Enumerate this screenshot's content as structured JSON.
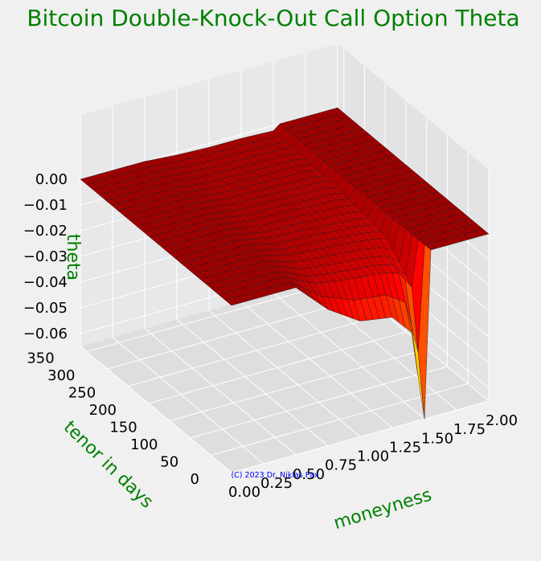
{
  "chart_data": {
    "type": "surface",
    "title": "Bitcoin Double-Knock-Out Call Option Theta",
    "xlabel": "moneyness",
    "ylabel": "tenor in days",
    "zlabel": "theta",
    "x_ticks": [
      "0.00",
      "0.25",
      "0.50",
      "0.75",
      "1.00",
      "1.25",
      "1.50",
      "1.75",
      "2.00"
    ],
    "y_ticks": [
      "0",
      "50",
      "100",
      "150",
      "200",
      "250",
      "300",
      "350"
    ],
    "z_ticks": [
      "0.00",
      "−0.01",
      "−0.02",
      "−0.03",
      "−0.04",
      "−0.05",
      "−0.06"
    ],
    "xlim": [
      0.0,
      2.0
    ],
    "ylim": [
      0,
      365
    ],
    "zlim": [
      -0.065,
      0.005
    ],
    "colormap": "jet",
    "surface_notes": "Theta is 0 outside the knock-out barriers (moneyness ~0.55 and ~1.55); inside, theta is slightly negative, becoming strongly negative near the upper barrier at short tenors (minimum about -0.065).",
    "samples": {
      "moneyness": [
        0.0,
        0.5,
        0.75,
        1.0,
        1.25,
        1.4,
        1.5,
        1.55,
        2.0
      ],
      "tenor_days": [
        0,
        30,
        90,
        180,
        270,
        365
      ],
      "theta": [
        [
          0.0,
          0.0,
          -0.012,
          -0.02,
          -0.022,
          -0.03,
          -0.065,
          0.0,
          0.0
        ],
        [
          0.0,
          0.0,
          -0.006,
          -0.008,
          -0.009,
          -0.011,
          -0.018,
          0.0,
          0.0
        ],
        [
          0.0,
          0.0,
          -0.003,
          -0.004,
          -0.005,
          -0.006,
          -0.007,
          0.0,
          0.0
        ],
        [
          0.0,
          0.0,
          -0.002,
          -0.002,
          -0.003,
          -0.003,
          -0.004,
          0.0,
          0.0
        ],
        [
          0.0,
          0.0,
          -0.0015,
          -0.0018,
          -0.002,
          -0.002,
          -0.003,
          0.0,
          0.0
        ],
        [
          0.0,
          0.0,
          -0.001,
          -0.0015,
          -0.0015,
          -0.0018,
          -0.002,
          0.0,
          0.0
        ]
      ]
    },
    "grid": true,
    "title_color": "#008000",
    "label_color": "#008000",
    "pane_color": "#e6e6e6",
    "copyright": "(C) 2023 Dr. Niklas Pax",
    "copyright_color": "#0000ff"
  }
}
